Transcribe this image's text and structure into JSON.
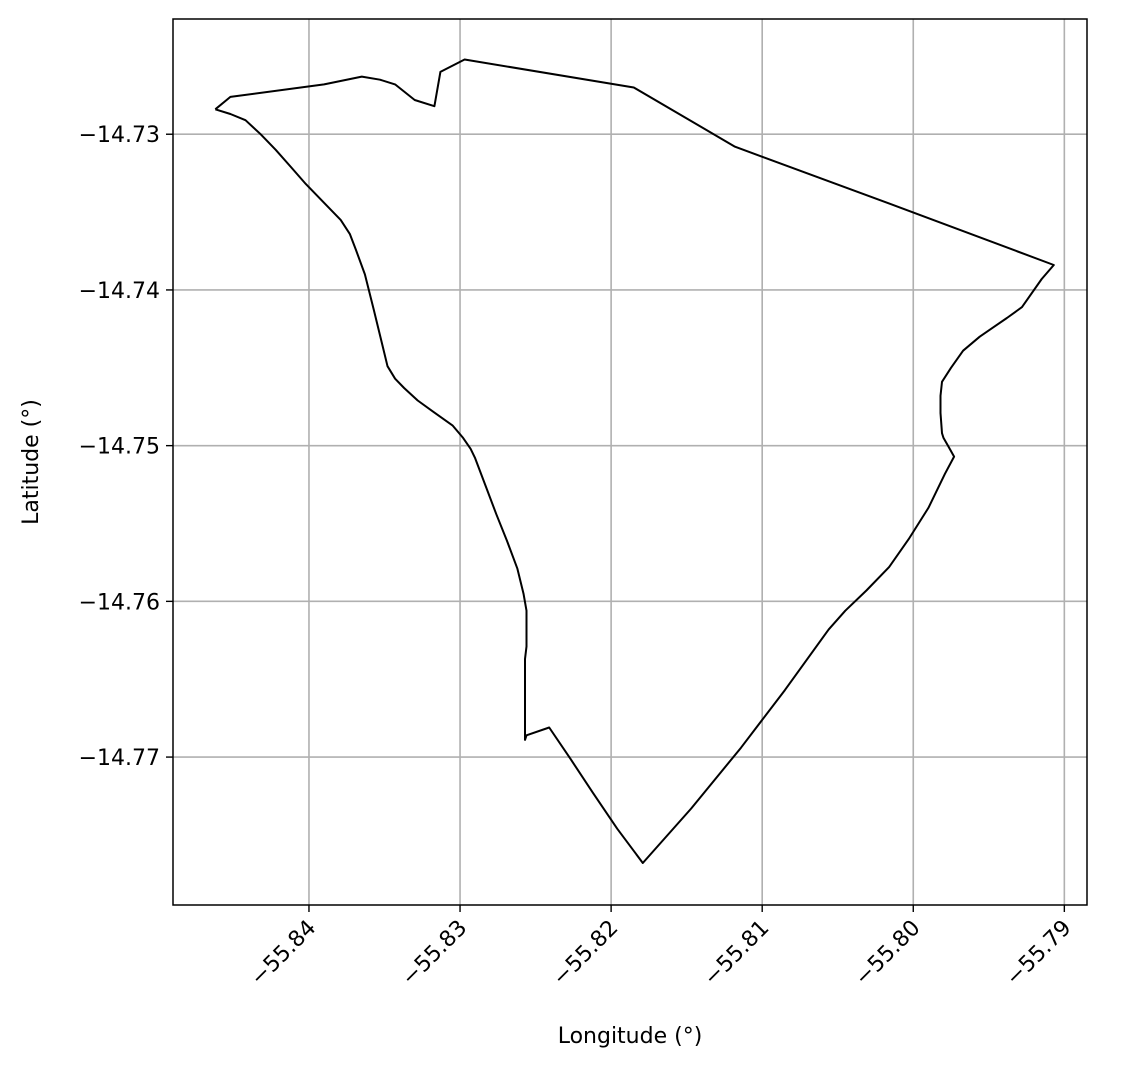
{
  "chart_data": {
    "type": "line",
    "title": "",
    "xlabel": "Longitude (°)",
    "ylabel": "Latitude (°)",
    "xlim": [
      -55.849,
      -55.7885
    ],
    "ylim": [
      -14.7795,
      -14.7226
    ],
    "grid": true,
    "xticks": [
      -55.84,
      -55.83,
      -55.82,
      -55.81,
      -55.8,
      -55.79
    ],
    "xtick_labels": [
      "−55.84",
      "−55.83",
      "−55.82",
      "−55.81",
      "−55.80",
      "−55.79"
    ],
    "yticks": [
      -14.73,
      -14.74,
      -14.75,
      -14.76,
      -14.77
    ],
    "ytick_labels": [
      "−14.73",
      "−14.74",
      "−14.75",
      "−14.76",
      "−14.77"
    ],
    "line_color": "#000000",
    "grid_color": "#b0b0b0",
    "polygon": {
      "x": [
        -55.8462,
        -55.8452,
        -55.8442,
        -55.8432,
        -55.8422,
        -55.8412,
        -55.8402,
        -55.8388,
        -55.8379,
        -55.8373,
        -55.8369,
        -55.8363,
        -55.8357,
        -55.8351,
        -55.8348,
        -55.8343,
        -55.8337,
        -55.8328,
        -55.8318,
        -55.8305,
        -55.8298,
        -55.8293,
        -55.829,
        -55.8283,
        -55.8276,
        -55.8269,
        -55.8262,
        -55.8258,
        -55.8256,
        -55.8256,
        -55.8256,
        -55.8257,
        -55.8257,
        -55.8256,
        -55.8241,
        -55.8227,
        -55.8212,
        -55.8196,
        -55.8179,
        -55.8147,
        -55.8114,
        -55.8085,
        -55.8056,
        -55.8045,
        -55.8031,
        -55.8016,
        -55.8003,
        -55.799,
        -55.7979,
        -55.7973,
        -55.7977,
        -55.798,
        -55.7981,
        -55.7982,
        -55.7982,
        -55.7981,
        -55.7975,
        -55.7967,
        -55.7956,
        -55.7947,
        -55.7938,
        -55.7928,
        -55.7915,
        -55.7907,
        -55.8009,
        -55.8118,
        -55.8185,
        -55.8297,
        -55.8313,
        -55.8317,
        -55.833,
        -55.8343,
        -55.8353,
        -55.8365,
        -55.839,
        -55.8452,
        -55.8462
      ],
      "y": [
        -14.7284,
        -14.7287,
        -14.7291,
        -14.73,
        -14.731,
        -14.7321,
        -14.7332,
        -14.7346,
        -14.7355,
        -14.7364,
        -14.7374,
        -14.739,
        -14.7413,
        -14.7437,
        -14.7449,
        -14.7457,
        -14.7463,
        -14.7471,
        -14.7478,
        -14.7487,
        -14.7495,
        -14.7502,
        -14.7508,
        -14.7526,
        -14.7544,
        -14.7561,
        -14.7579,
        -14.7595,
        -14.7606,
        -14.7617,
        -14.7629,
        -14.7637,
        -14.7689,
        -14.7686,
        -14.7681,
        -14.7701,
        -14.7723,
        -14.7746,
        -14.7768,
        -14.7733,
        -14.7694,
        -14.7657,
        -14.7618,
        -14.7606,
        -14.7593,
        -14.7578,
        -14.756,
        -14.754,
        -14.7518,
        -14.7507,
        -14.75,
        -14.7495,
        -14.7492,
        -14.7479,
        -14.7468,
        -14.7459,
        -14.745,
        -14.7439,
        -14.743,
        -14.7424,
        -14.7418,
        -14.7411,
        -14.7393,
        -14.7384,
        -14.7347,
        -14.7308,
        -14.727,
        -14.7252,
        -14.726,
        -14.7282,
        -14.7278,
        -14.7268,
        -14.7265,
        -14.7263,
        -14.7268,
        -14.7276,
        -14.7284
      ]
    }
  }
}
